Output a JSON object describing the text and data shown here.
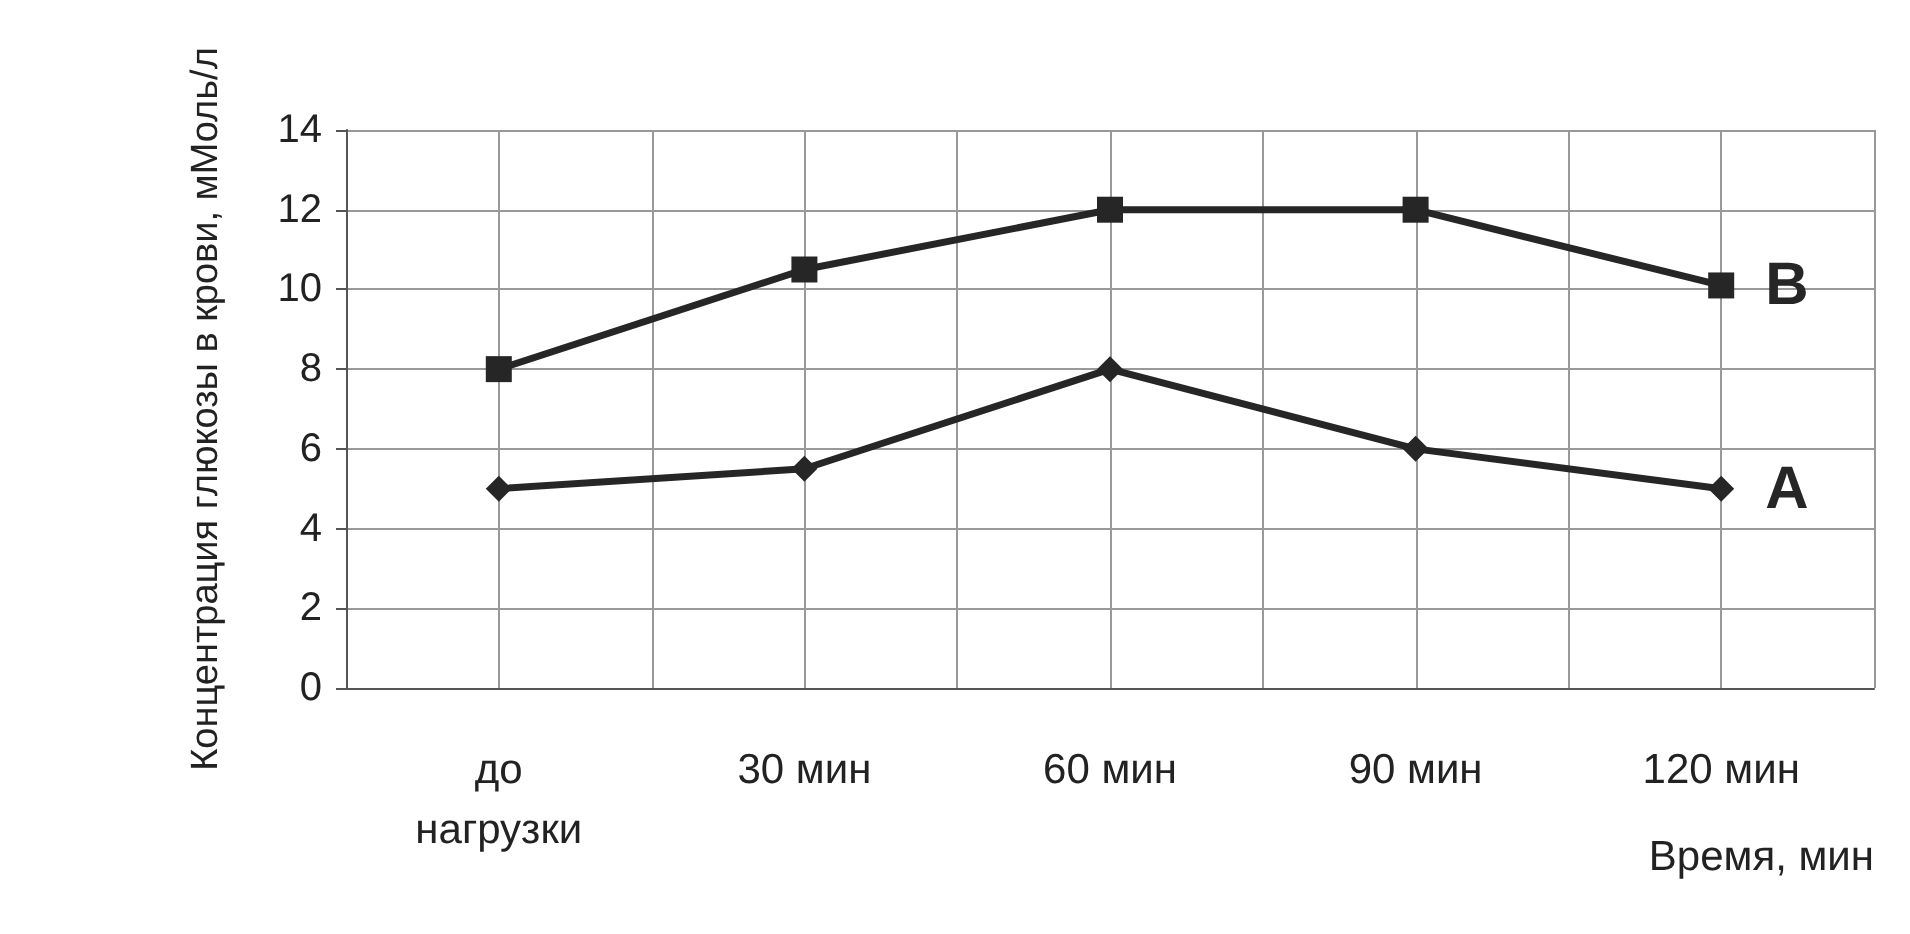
{
  "chart_data": {
    "type": "line",
    "ylabel": "Концентрация глюкозы в крови, мМоль/л",
    "xlabel": "Время, мин",
    "categories": [
      "до нагрузки",
      "30 мин",
      "60 мин",
      "90 мин",
      "120 мин"
    ],
    "series": [
      {
        "name": "B",
        "color": "#262626",
        "marker": "square",
        "values": [
          8,
          10.5,
          12,
          12,
          10.1
        ]
      },
      {
        "name": "A",
        "color": "#262626",
        "marker": "diamond",
        "values": [
          5,
          5.5,
          8,
          6,
          5
        ]
      }
    ],
    "ylim": [
      0,
      14
    ],
    "yticks": [
      0,
      2,
      4,
      6,
      8,
      10,
      12,
      14
    ],
    "grid": true,
    "legend": false
  }
}
